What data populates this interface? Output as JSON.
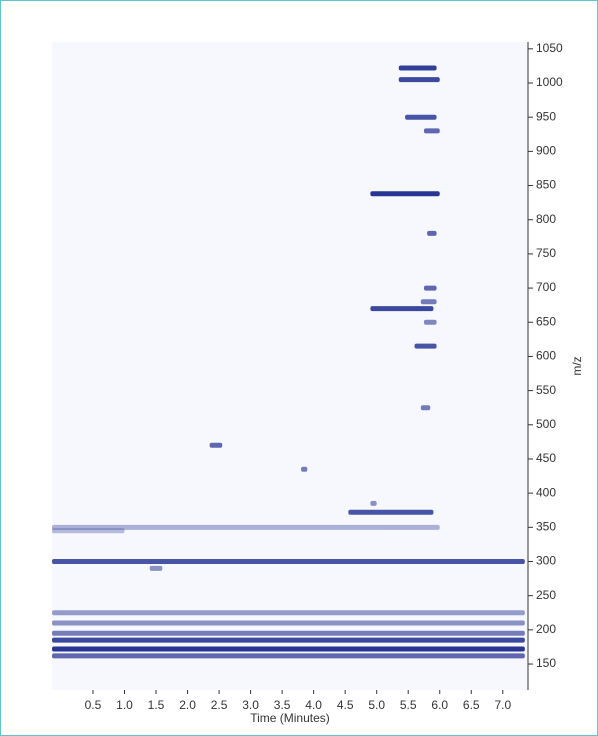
{
  "chart_data": {
    "type": "ms-map",
    "xlabel": "Time (Minutes)",
    "ylabel": "m/z",
    "xlim": [
      -0.15,
      7.4
    ],
    "ylim": [
      112,
      1060
    ],
    "xticks": [
      0.5,
      {
        "value": 1,
        "label": "1.0"
      },
      1.5,
      {
        "value": 2,
        "label": "2.0"
      },
      2.5,
      {
        "value": 3,
        "label": "3.0"
      },
      3.5,
      {
        "value": 4,
        "label": "4.0"
      },
      4.5,
      {
        "value": 5,
        "label": "5.0"
      },
      5.5,
      {
        "value": 6,
        "label": "6.0"
      },
      6.5,
      {
        "value": 7,
        "label": "7.0"
      }
    ],
    "yticks": [
      150,
      200,
      250,
      300,
      350,
      400,
      450,
      500,
      550,
      600,
      650,
      700,
      750,
      800,
      850,
      900,
      950,
      1000,
      1050
    ],
    "color": "#1c2a8e",
    "features": {
      "start": [
        5.35,
        5.35,
        5.45,
        5.75,
        4.9,
        5.8,
        5.75,
        4.9,
        5.6,
        5.7,
        2.35,
        3.8,
        4.55,
        4.9,
        -0.15,
        1.4,
        -0.15,
        -0.15,
        -0.15,
        -0.15,
        -0.15,
        -0.15,
        -0.15,
        -0.15,
        5.7,
        5.75
      ],
      "end": [
        5.95,
        6.0,
        5.95,
        6.0,
        6.0,
        5.95,
        5.95,
        5.9,
        5.95,
        5.85,
        2.55,
        3.9,
        5.9,
        5.0,
        7.35,
        1.6,
        7.35,
        7.35,
        7.35,
        7.35,
        7.35,
        7.35,
        6.0,
        1.0,
        5.95,
        5.95
      ],
      "mz": [
        1022,
        1005,
        950,
        930,
        838,
        780,
        700,
        670,
        615,
        525,
        470,
        435,
        372,
        385,
        300,
        290,
        185,
        172,
        162,
        195,
        210,
        225,
        350,
        345,
        680,
        650
      ],
      "intensity": [
        0.9,
        0.85,
        0.8,
        0.7,
        0.95,
        0.7,
        0.7,
        0.85,
        0.8,
        0.6,
        0.7,
        0.6,
        0.8,
        0.5,
        0.8,
        0.5,
        0.85,
        0.95,
        0.7,
        0.6,
        0.5,
        0.45,
        0.35,
        0.3,
        0.6,
        0.55
      ]
    }
  }
}
